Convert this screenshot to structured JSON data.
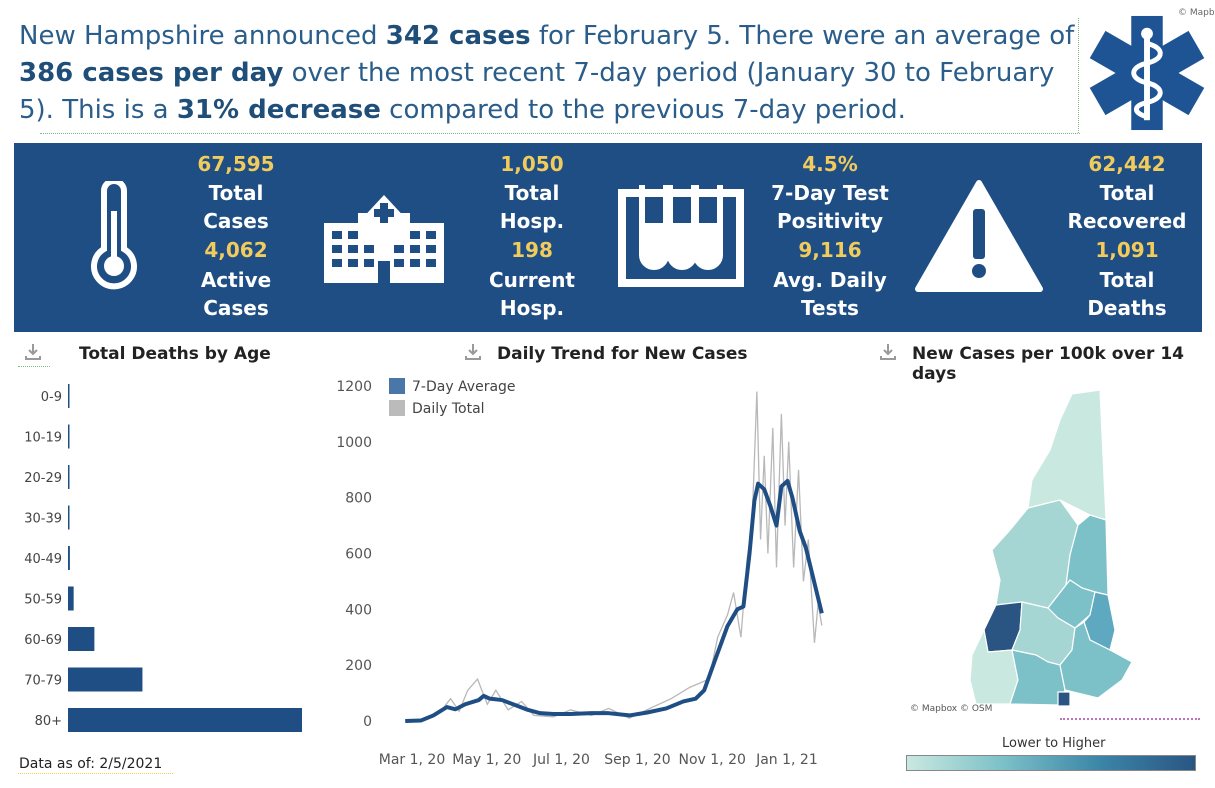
{
  "headline": {
    "p1": "New Hampshire announced ",
    "b1": "342 cases",
    "p2": " for February 5. There were an average of ",
    "b2": "386 cases per day",
    "p3": " over the most recent 7-day period (January 30 to February 5). This is a ",
    "b3": "31% decrease",
    "p4": " compared to the previous 7-day period."
  },
  "mapbox_top": "© Mapb",
  "stats": {
    "total_cases": "67,595",
    "total_cases_label1": "Total",
    "total_cases_label2": "Cases",
    "active_cases": "4,062",
    "active_cases_label1": "Active",
    "active_cases_label2": "Cases",
    "total_hosp": "1,050",
    "total_hosp_label1": "Total",
    "total_hosp_label2": "Hosp.",
    "current_hosp": "198",
    "current_hosp_label1": "Current",
    "current_hosp_label2": "Hosp.",
    "positivity": "4.5%",
    "positivity_label1": "7-Day Test",
    "positivity_label2": "Positivity",
    "daily_tests": "9,116",
    "daily_tests_label1": "Avg. Daily",
    "daily_tests_label2": "Tests",
    "total_recovered": "62,442",
    "total_recovered_label1": "Total",
    "total_recovered_label2": "Recovered",
    "total_deaths": "1,091",
    "total_deaths_label1": "Total",
    "total_deaths_label2": "Deaths"
  },
  "sections": {
    "age_title": "Total Deaths by Age",
    "trend_title": "Daily Trend for New Cases",
    "map_title": "New Cases per 100k over 14 days"
  },
  "map": {
    "credit": "© Mapbox © OSM",
    "scale_label": "Lower to Higher",
    "colors": [
      "#c9e8e0",
      "#a6d6d3",
      "#7cc0c8",
      "#5ea9c0",
      "#3c86a8",
      "#2a5583"
    ]
  },
  "data_as_of": "Data as of: 2/5/2021",
  "colors": {
    "banner": "#1f4e85",
    "accent": "#f1cb5c",
    "line": "#1f4e85",
    "daily": "#b8b8b8"
  },
  "chart_data": [
    {
      "type": "bar",
      "orientation": "horizontal",
      "title": "Total Deaths by Age",
      "categories": [
        "0-9",
        "10-19",
        "20-29",
        "30-39",
        "40-49",
        "50-59",
        "60-69",
        "70-79",
        "80+"
      ],
      "values": [
        0,
        0,
        1,
        1,
        6,
        18,
        84,
        237,
        745
      ],
      "xlim": [
        0,
        760
      ]
    },
    {
      "type": "line",
      "title": "Daily Trend for New Cases",
      "x_ticks": [
        "Mar 1, 20",
        "May 1, 20",
        "Jul 1, 20",
        "Sep 1, 20",
        "Nov 1, 20",
        "Jan 1, 21"
      ],
      "ylim": [
        0,
        1200
      ],
      "y_ticks": [
        0,
        200,
        400,
        600,
        800,
        1000,
        1200
      ],
      "legend_placement": "top-left",
      "series": [
        {
          "name": "7-Day Average",
          "points": [
            [
              "2020-03-02",
              0
            ],
            [
              "2020-03-15",
              2
            ],
            [
              "2020-03-25",
              20
            ],
            [
              "2020-04-05",
              50
            ],
            [
              "2020-04-12",
              42
            ],
            [
              "2020-04-20",
              60
            ],
            [
              "2020-05-01",
              75
            ],
            [
              "2020-05-05",
              90
            ],
            [
              "2020-05-10",
              80
            ],
            [
              "2020-05-20",
              75
            ],
            [
              "2020-06-01",
              55
            ],
            [
              "2020-06-10",
              40
            ],
            [
              "2020-06-20",
              28
            ],
            [
              "2020-07-01",
              25
            ],
            [
              "2020-07-15",
              25
            ],
            [
              "2020-08-01",
              28
            ],
            [
              "2020-08-15",
              28
            ],
            [
              "2020-09-01",
              20
            ],
            [
              "2020-09-15",
              30
            ],
            [
              "2020-10-01",
              45
            ],
            [
              "2020-10-15",
              70
            ],
            [
              "2020-10-25",
              80
            ],
            [
              "2020-11-01",
              110
            ],
            [
              "2020-11-10",
              220
            ],
            [
              "2020-11-20",
              340
            ],
            [
              "2020-11-28",
              400
            ],
            [
              "2020-12-03",
              410
            ],
            [
              "2020-12-08",
              600
            ],
            [
              "2020-12-12",
              790
            ],
            [
              "2020-12-15",
              850
            ],
            [
              "2020-12-20",
              830
            ],
            [
              "2020-12-25",
              770
            ],
            [
              "2020-12-30",
              700
            ],
            [
              "2021-01-03",
              840
            ],
            [
              "2021-01-08",
              860
            ],
            [
              "2021-01-12",
              800
            ],
            [
              "2021-01-18",
              680
            ],
            [
              "2021-01-23",
              620
            ],
            [
              "2021-01-28",
              530
            ],
            [
              "2021-02-02",
              440
            ],
            [
              "2021-02-05",
              386
            ]
          ]
        },
        {
          "name": "Daily Total",
          "points": [
            [
              "2020-03-02",
              0
            ],
            [
              "2020-03-20",
              10
            ],
            [
              "2020-04-01",
              40
            ],
            [
              "2020-04-08",
              80
            ],
            [
              "2020-04-15",
              35
            ],
            [
              "2020-04-22",
              110
            ],
            [
              "2020-04-30",
              150
            ],
            [
              "2020-05-08",
              60
            ],
            [
              "2020-05-15",
              110
            ],
            [
              "2020-05-25",
              40
            ],
            [
              "2020-06-05",
              70
            ],
            [
              "2020-06-15",
              20
            ],
            [
              "2020-07-01",
              15
            ],
            [
              "2020-07-15",
              40
            ],
            [
              "2020-08-01",
              20
            ],
            [
              "2020-08-15",
              45
            ],
            [
              "2020-09-01",
              10
            ],
            [
              "2020-09-20",
              50
            ],
            [
              "2020-10-05",
              80
            ],
            [
              "2020-10-20",
              120
            ],
            [
              "2020-11-05",
              150
            ],
            [
              "2020-11-12",
              300
            ],
            [
              "2020-11-20",
              380
            ],
            [
              "2020-11-25",
              460
            ],
            [
              "2020-12-01",
              300
            ],
            [
              "2020-12-06",
              580
            ],
            [
              "2020-12-10",
              700
            ],
            [
              "2020-12-14",
              1180
            ],
            [
              "2020-12-17",
              650
            ],
            [
              "2020-12-20",
              950
            ],
            [
              "2020-12-23",
              600
            ],
            [
              "2020-12-27",
              1050
            ],
            [
              "2020-12-30",
              550
            ],
            [
              "2021-01-03",
              1100
            ],
            [
              "2021-01-06",
              700
            ],
            [
              "2021-01-09",
              1000
            ],
            [
              "2021-01-13",
              550
            ],
            [
              "2021-01-17",
              900
            ],
            [
              "2021-01-21",
              500
            ],
            [
              "2021-01-25",
              650
            ],
            [
              "2021-01-30",
              280
            ],
            [
              "2021-02-02",
              420
            ],
            [
              "2021-02-05",
              342
            ]
          ]
        }
      ]
    },
    {
      "type": "choropleth",
      "title": "New Cases per 100k over 14 days",
      "legend": "Lower to Higher"
    }
  ]
}
